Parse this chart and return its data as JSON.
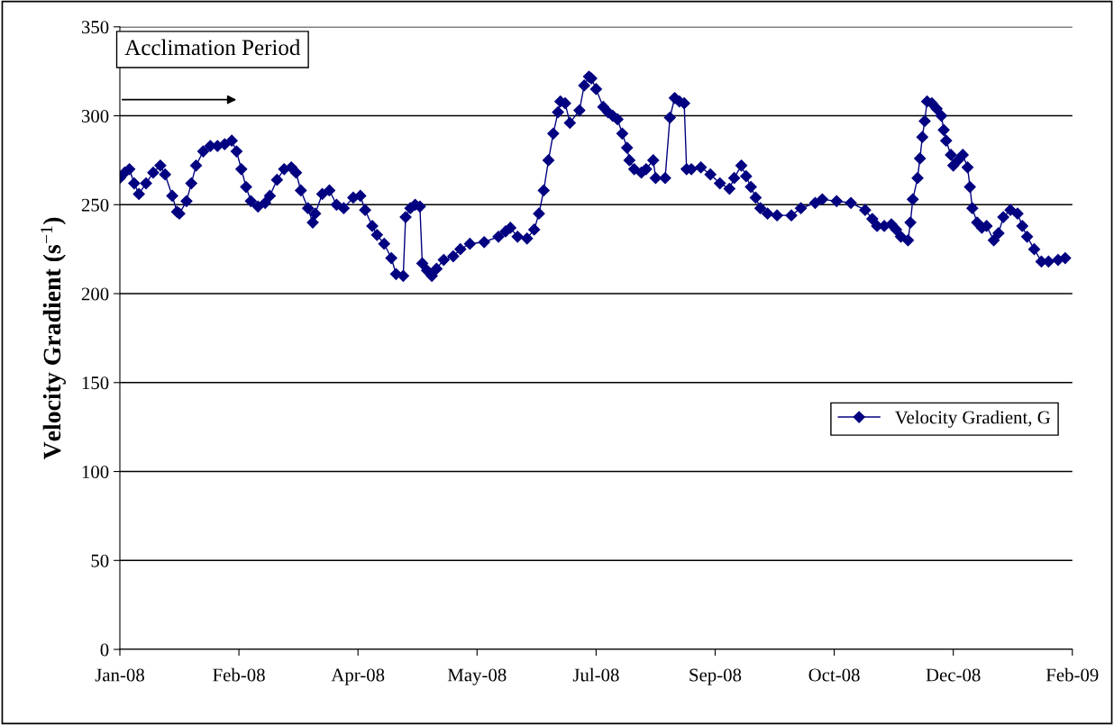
{
  "chart_data": {
    "type": "line",
    "ylabel": "Velocity Gradient (s$^{−1}$)",
    "annotations": [
      "Acclimation Period"
    ],
    "x": [
      "2008-01-01",
      "2008-01-03",
      "2008-01-05",
      "2008-01-07",
      "2008-01-09",
      "2008-01-12",
      "2008-01-15",
      "2008-01-18",
      "2008-01-20",
      "2008-01-23",
      "2008-01-25",
      "2008-01-26",
      "2008-01-29",
      "2008-01-31",
      "2008-02-02",
      "2008-02-05",
      "2008-02-08",
      "2008-02-11",
      "2008-02-14",
      "2008-02-17",
      "2008-02-19",
      "2008-02-21",
      "2008-02-23",
      "2008-02-25",
      "2008-02-28",
      "2008-03-02",
      "2008-03-04",
      "2008-03-07",
      "2008-03-10",
      "2008-03-13",
      "2008-03-15",
      "2008-03-17",
      "2008-03-20",
      "2008-03-22",
      "2008-03-23",
      "2008-03-26",
      "2008-03-29",
      "2008-04-01",
      "2008-04-04",
      "2008-04-08",
      "2008-04-11",
      "2008-04-13",
      "2008-04-16",
      "2008-04-18",
      "2008-04-21",
      "2008-04-24",
      "2008-04-26",
      "2008-04-29",
      "2008-04-30",
      "2008-05-02",
      "2008-05-04",
      "2008-05-06",
      "2008-05-07",
      "2008-05-09",
      "2008-05-11",
      "2008-05-13",
      "2008-05-16",
      "2008-05-20",
      "2008-05-23",
      "2008-05-27",
      "2008-06-02",
      "2008-06-08",
      "2008-06-11",
      "2008-06-13",
      "2008-06-16",
      "2008-06-20",
      "2008-06-23",
      "2008-06-25",
      "2008-06-27",
      "2008-06-29",
      "2008-07-01",
      "2008-07-03",
      "2008-07-04",
      "2008-07-06",
      "2008-07-08",
      "2008-07-12",
      "2008-07-14",
      "2008-07-16",
      "2008-07-17",
      "2008-07-19",
      "2008-07-22",
      "2008-07-24",
      "2008-07-26",
      "2008-07-28",
      "2008-07-30",
      "2008-08-01",
      "2008-08-02",
      "2008-08-04",
      "2008-08-07",
      "2008-08-09",
      "2008-08-12",
      "2008-08-13",
      "2008-08-17",
      "2008-08-19",
      "2008-08-21",
      "2008-08-23",
      "2008-08-25",
      "2008-08-26",
      "2008-08-28",
      "2008-09-01",
      "2008-09-05",
      "2008-09-09",
      "2008-09-13",
      "2008-09-15",
      "2008-09-18",
      "2008-09-20",
      "2008-09-22",
      "2008-09-24",
      "2008-09-26",
      "2008-09-29",
      "2008-10-03",
      "2008-10-09",
      "2008-10-13",
      "2008-10-19",
      "2008-10-22",
      "2008-10-28",
      "2008-11-03",
      "2008-11-09",
      "2008-11-12",
      "2008-11-14",
      "2008-11-17",
      "2008-11-20",
      "2008-11-22",
      "2008-11-24",
      "2008-11-27",
      "2008-11-28",
      "2008-11-29",
      "2008-12-01",
      "2008-12-02",
      "2008-12-03",
      "2008-12-04",
      "2008-12-05",
      "2008-12-07",
      "2008-12-09",
      "2008-12-11",
      "2008-12-12",
      "2008-12-13",
      "2008-12-15",
      "2008-12-16",
      "2008-12-18",
      "2008-12-20",
      "2008-12-22",
      "2008-12-23",
      "2008-12-24",
      "2008-12-26",
      "2008-12-28",
      "2008-12-30",
      "2009-01-02",
      "2009-01-04",
      "2009-01-06",
      "2009-01-09",
      "2009-01-12",
      "2009-01-14",
      "2009-01-16",
      "2009-01-19",
      "2009-01-22",
      "2009-01-25",
      "2009-01-29",
      "2009-02-01"
    ],
    "series": [
      {
        "name": "Velocity Gradient, G",
        "color": "#000080",
        "values": [
          265,
          268,
          270,
          262,
          256,
          262,
          268,
          272,
          267,
          255,
          246,
          245,
          252,
          262,
          272,
          280,
          283,
          283,
          284,
          286,
          280,
          270,
          260,
          252,
          249,
          251,
          255,
          264,
          270,
          271,
          268,
          258,
          248,
          240,
          245,
          256,
          258,
          250,
          248,
          254,
          255,
          247,
          238,
          233,
          228,
          220,
          211,
          210,
          243,
          248,
          250,
          249,
          217,
          213,
          210,
          214,
          219,
          221,
          225,
          228,
          229,
          232,
          235,
          237,
          232,
          231,
          236,
          245,
          258,
          275,
          290,
          302,
          308,
          307,
          296,
          303,
          317,
          322,
          321,
          315,
          305,
          302,
          300,
          298,
          290,
          282,
          275,
          270,
          268,
          270,
          275,
          265,
          265,
          299,
          310,
          308,
          307,
          270,
          270,
          271,
          267,
          262,
          259,
          265,
          272,
          266,
          260,
          254,
          248,
          245,
          244,
          244,
          248,
          251,
          253,
          252,
          251,
          247,
          242,
          238,
          238,
          239,
          236,
          232,
          230,
          240,
          253,
          265,
          276,
          288,
          297,
          308,
          307,
          304,
          300,
          292,
          286,
          278,
          272,
          275,
          278,
          271,
          260,
          248,
          240,
          237,
          238,
          230,
          234,
          243,
          247,
          245,
          238,
          232,
          225,
          218,
          218,
          219,
          220
        ]
      }
    ],
    "xlim": [
      "2008-01-01",
      "2009-02-04"
    ],
    "xticks": [
      {
        "value": "2008-01-01",
        "label": "Jan-08"
      },
      {
        "value": "2008-02-20",
        "label": "Feb-08"
      },
      {
        "value": "2008-04-10",
        "label": "Apr-08"
      },
      {
        "value": "2008-05-30",
        "label": "May-08"
      },
      {
        "value": "2008-07-19",
        "label": "Jul-08"
      },
      {
        "value": "2008-09-07",
        "label": "Sep-08"
      },
      {
        "value": "2008-10-27",
        "label": "Oct-08"
      },
      {
        "value": "2008-12-16",
        "label": "Dec-08"
      },
      {
        "value": "2009-02-04",
        "label": "Feb-09"
      }
    ],
    "ylim": [
      0,
      350
    ],
    "yticks": [
      0,
      50,
      100,
      150,
      200,
      250,
      300,
      350
    ],
    "grid": "y",
    "legend": "right",
    "marker": "diamond",
    "line_style": "solid"
  }
}
